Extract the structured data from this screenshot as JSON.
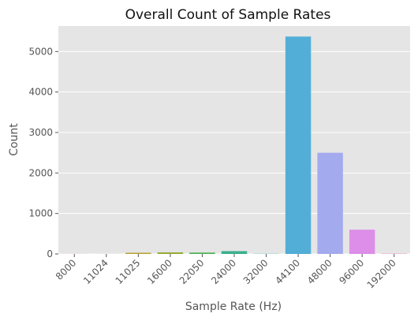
{
  "chart_data": {
    "type": "bar",
    "title": "Overall Count of Sample Rates",
    "xlabel": "Sample Rate (Hz)",
    "ylabel": "Count",
    "categories": [
      "8000",
      "11024",
      "11025",
      "16000",
      "22050",
      "24000",
      "32000",
      "44100",
      "48000",
      "96000",
      "192000"
    ],
    "values": [
      2,
      1,
      30,
      40,
      35,
      70,
      5,
      5370,
      2500,
      600,
      8
    ],
    "colors": [
      "#ef8a89",
      "#d99a3a",
      "#b8a23a",
      "#97ab3b",
      "#56b45a",
      "#3bb08c",
      "#3ab3b0",
      "#52aed6",
      "#a4aaee",
      "#dd8ee8",
      "#ef8ac6"
    ],
    "yticks": [
      0,
      1000,
      2000,
      3000,
      4000,
      5000
    ],
    "ylim": [
      0,
      5630
    ],
    "grid": true,
    "background": "#e5e5e5",
    "grid_color": "#ffffff"
  }
}
